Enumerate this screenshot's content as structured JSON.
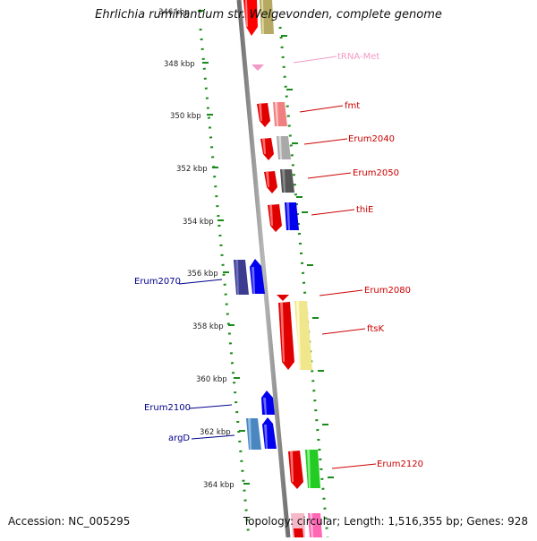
{
  "title": "Ehrlichia ruminantium str. Welgevonden, complete genome",
  "accession": "Accession: NC_005295",
  "topology": "Topology: circular; Length: 1,516,355 bp; Genes: 928",
  "colors": {
    "backbone": "#8a8a8a",
    "ruler": "#1a8a1a",
    "cds_red": "#ff0000",
    "blue": "#0000ff",
    "trna": "#f29ac7"
  },
  "kbp_labels": [
    "346 kbp",
    "348 kbp",
    "350 kbp",
    "352 kbp",
    "354 kbp",
    "356 kbp",
    "358 kbp",
    "360 kbp",
    "362 kbp",
    "364 kbp"
  ],
  "gene_labels": [
    {
      "text": "tRNA-Met",
      "color": "#f29ac7"
    },
    {
      "text": "fmt",
      "color": "#cc0000"
    },
    {
      "text": "Erum2040",
      "color": "#cc0000"
    },
    {
      "text": "Erum2050",
      "color": "#cc0000"
    },
    {
      "text": "thiE",
      "color": "#cc0000"
    },
    {
      "text": "Erum2070",
      "color": "#00008b"
    },
    {
      "text": "Erum2080",
      "color": "#cc0000"
    },
    {
      "text": "ftsK",
      "color": "#cc0000"
    },
    {
      "text": "Erum2100",
      "color": "#00008b"
    },
    {
      "text": "argD",
      "color": "#00008b"
    },
    {
      "text": "Erum2120",
      "color": "#cc0000"
    }
  ]
}
